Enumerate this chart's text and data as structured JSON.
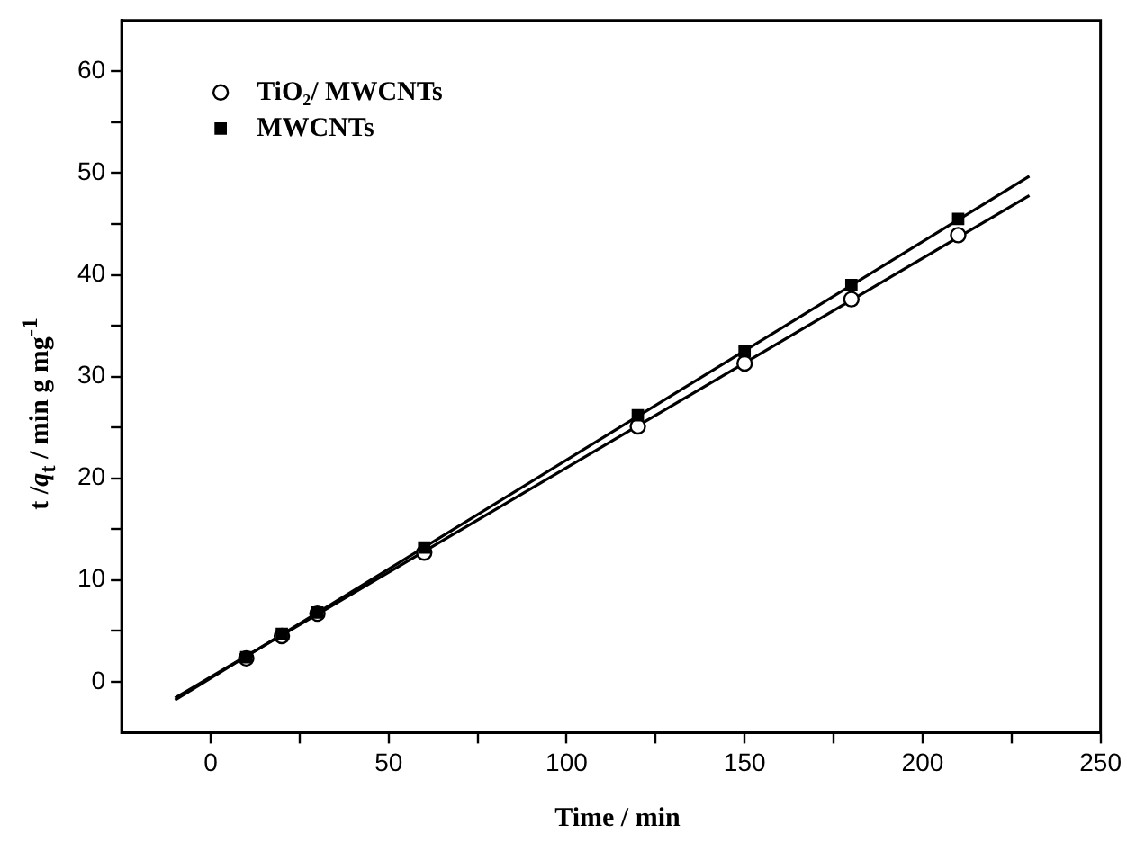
{
  "chart_data": {
    "type": "scatter",
    "xlabel": "Time / min",
    "ylabel": "t /$_{}$q$_{t}$ / min g mg$^{-1}$",
    "xlim": [
      -25,
      250
    ],
    "ylim": [
      -5,
      65
    ],
    "xticks": [
      0,
      {
        "value": 25,
        "label": null
      },
      50,
      {
        "value": 75,
        "label": null
      },
      100,
      {
        "value": 125,
        "label": null
      },
      150,
      {
        "value": 175,
        "label": null
      },
      200,
      {
        "value": 225,
        "label": null
      },
      250
    ],
    "yticks": [
      0,
      {
        "value": 5,
        "label": null
      },
      10,
      {
        "value": 15,
        "label": null
      },
      20,
      {
        "value": 25,
        "label": null
      },
      30,
      {
        "value": 35,
        "label": null
      },
      40,
      {
        "value": 45,
        "label": null
      },
      50,
      {
        "value": 55,
        "label": null
      },
      60
    ],
    "grid": false,
    "legend": "top left",
    "series": [
      {
        "name": "TiO₂/ MWCNTs",
        "color": "#000000",
        "marker": "circle",
        "x": [
          10,
          20,
          30,
          60,
          120,
          150,
          180,
          210
        ],
        "values": [
          2.3,
          4.5,
          6.7,
          12.7,
          25.1,
          31.3,
          37.6,
          43.9
        ]
      },
      {
        "name": "MWCNTs",
        "color": "#000000",
        "marker": "square",
        "x": [
          10,
          20,
          30,
          60,
          120,
          150,
          180,
          210
        ],
        "values": [
          2.4,
          4.7,
          6.8,
          13.2,
          26.2,
          32.5,
          39.0,
          45.5
        ]
      },
      {
        "type": "line",
        "color": "#000000",
        "marker": "none",
        "x": [
          -10,
          230
        ],
        "values": [
          -1.6,
          47.8
        ]
      },
      {
        "type": "line",
        "color": "#000000",
        "marker": "none",
        "x": [
          -10,
          230
        ],
        "values": [
          -1.8,
          49.7
        ]
      }
    ]
  }
}
